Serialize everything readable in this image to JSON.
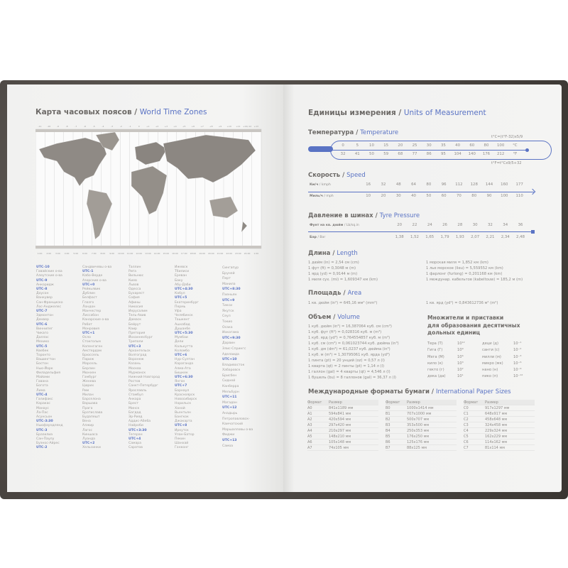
{
  "accent": "#5a73c4",
  "left": {
    "title_ru": "Карта часовых поясов",
    "title_sep": " / ",
    "title_en": "World Time Zones",
    "map": {
      "top_ticks": [
        "-11",
        "-10",
        "-9",
        "-8",
        "-7",
        "-6",
        "-5",
        "-4",
        "-3",
        "-2",
        "-1",
        "0",
        "+1",
        "+2",
        "+3",
        "+4",
        "+5",
        "+6",
        "+7",
        "+8",
        "+9",
        "+10",
        "+11",
        "+12/-12",
        "+13"
      ],
      "bottom_ticks": [
        "1:00",
        "2:00",
        "3:00",
        "4:00",
        "5:00",
        "6:00",
        "7:00",
        "8:00",
        "9:00",
        "10:00",
        "11:00",
        "12:00",
        "13:00",
        "14:00",
        "15:00",
        "16:00",
        "17:00",
        "18:00",
        "19:00",
        "20:00",
        "21:00",
        "22:00",
        "23:00",
        "24:00",
        "1:00"
      ]
    },
    "zones": [
      [
        "UTC-10",
        "Гавайские о-ва",
        "Алеутские о-ва",
        "UTC-9",
        "Анкоридж",
        "UTC-8",
        "Доусон",
        "Ванкувер",
        "Сан-Франциско",
        "Лос-Анджелес",
        "UTC-7",
        "Эдмонтон",
        "Денвер",
        "UTC-6",
        "Виннипег",
        "Чикаго",
        "Даллас",
        "Мехико",
        "UTC-5",
        "Квебек",
        "Торонто",
        "Вашингтон",
        "Бостон",
        "Нью-Йорк",
        "Филадельфия",
        "Майами",
        "Гавана",
        "Богота",
        "Лима",
        "UTC-4",
        "Галифакс",
        "Каракас",
        "Манаус",
        "Ла-Пас",
        "Асунсьон",
        "UTC-3:30",
        "Ньюфаундленд",
        "UTC-3",
        "Бразилиа",
        "Сан-Паулу",
        "Буэнос-Айрес",
        "UTC-2"
      ],
      [
        "Сандвичевы о-ва",
        "UTC-1",
        "Кабо-Верде",
        "Азорские о-ва",
        "UTC+0",
        "Рейкьявик",
        "Дублин",
        "Белфаст",
        "Глазго",
        "Лондон",
        "Манчестер",
        "Лиссабон",
        "Канарские о-ва",
        "Рабат",
        "Монровия",
        "UTC+1",
        "Осло",
        "Стокгольм",
        "Копенгаген",
        "Амстердам",
        "Брюссель",
        "Париж",
        "Марсель",
        "Берлин",
        "Мюнхен",
        "Гамбург",
        "Женева",
        "Цюрих",
        "Рим",
        "Милан",
        "Барселона",
        "Варшава",
        "Прага",
        "Братислава",
        "Будапешт",
        "Вена",
        "Алжир",
        "Лагос",
        "Киншаса",
        "Луанда",
        "UTC+2",
        "Хельсинки"
      ],
      [
        "Таллин",
        "Рига",
        "Вильнюс",
        "Киев",
        "Львов",
        "Одесса",
        "Бухарест",
        "София",
        "Афины",
        "Никосия",
        "Иерусалим",
        "Тель-Авив",
        "Дамаск",
        "Бейрут",
        "Каир",
        "Претория",
        "Йоханнесбург",
        "Триполи",
        "UTC+3",
        "Архангельск",
        "Волгоград",
        "Воронеж",
        "Казань",
        "Москва",
        "Мурманск",
        "Нижний Новгород",
        "Ростов",
        "Санкт-Петербург",
        "Ярославль",
        "Стамбул",
        "Анкара",
        "Брест",
        "Минск",
        "Багдад",
        "Эр-Рияд",
        "Аддис-Абеба",
        "Найроби",
        "UTC+3:30",
        "Тегеран",
        "UTC+4",
        "Самара",
        "Саратов"
      ],
      [
        "Ижевск",
        "Тбилиси",
        "Ереван",
        "Баку",
        "Абу-Даби",
        "UTC+4:30",
        "Кабул",
        "UTC+5",
        "Екатеринбург",
        "Пермь",
        "Уфа",
        "Челябинск",
        "Ташкент",
        "Ашхабад",
        "Душанбе",
        "UTC+5:30",
        "Мумбаи",
        "Дели",
        "Калькутта",
        "Коломбо",
        "UTC+6",
        "Нур-Султан",
        "Караганда",
        "Алма-Ата",
        "Бишкек",
        "UTC+6:30",
        "Янгон",
        "UTC+7",
        "Барнаул",
        "Красноярск",
        "Новосибирск",
        "Норильск",
        "Ханой",
        "Вьентьян",
        "Бангкок",
        "Джакарта",
        "UTC+8",
        "Иркутск",
        "Улан-Батор",
        "Пекин",
        "Шанхай",
        "Гонконг"
      ],
      [
        "Сингапур",
        "Бруней",
        "Перт",
        "Манила",
        "UTC+8:30",
        "Пхеньян",
        "UTC+9",
        "Тикси",
        "Якутск",
        "Сеул",
        "Токио",
        "Осака",
        "Иокогама",
        "UTC+9:30",
        "Дарвин",
        "Элис-Спрингс",
        "Аделаида",
        "UTC+10",
        "Владивосток",
        "Хабаровск",
        "Брисбен",
        "Сидней",
        "Канберра",
        "Мельбурн",
        "UTC+11",
        "Магадан",
        "UTC+12",
        "Анадырь",
        "Петропавловск-",
        "Камчатский",
        "Маршалловы о-ва",
        "Фиджи",
        "UTC+13",
        "Самоа"
      ]
    ]
  },
  "right": {
    "title_ru": "Единицы измерения",
    "title_en": "Units of Measurement",
    "sep": " / ",
    "temperature": {
      "ru": "Температура",
      "en": "Temperature",
      "formula_c": "t°C=(t°F-32)x5/9",
      "formula_f": "t°F=t°Cx9/5+32",
      "c": [
        "0",
        "5",
        "10",
        "15",
        "20",
        "25",
        "30",
        "35",
        "40",
        "60",
        "80",
        "100",
        "°C"
      ],
      "f": [
        "32",
        "41",
        "50",
        "59",
        "68",
        "77",
        "86",
        "95",
        "104",
        "140",
        "176",
        "212",
        "°F"
      ]
    },
    "speed": {
      "ru": "Скорость",
      "en": "Speed",
      "kmh_label": "Км/ч",
      "kmh_en": "kmph",
      "mph_label": "Миль/ч",
      "mph_en": "mph",
      "kmh": [
        "16",
        "32",
        "48",
        "64",
        "80",
        "96",
        "112",
        "128",
        "144",
        "160",
        "177"
      ],
      "mph": [
        "10",
        "20",
        "30",
        "40",
        "50",
        "60",
        "70",
        "80",
        "90",
        "100",
        "110"
      ]
    },
    "pressure": {
      "ru": "Давление в шинах",
      "en": "Tyre Pressure",
      "psi_label": "Фунт на кв. дюйм",
      "psi_en": "Lb/sq.in",
      "bar_label": "Бар",
      "bar_en": "Bar",
      "psi": [
        "20",
        "22",
        "24",
        "26",
        "28",
        "30",
        "32",
        "34",
        "36"
      ],
      "bar": [
        "1,38",
        "1,52",
        "1,65",
        "1,79",
        "1,93",
        "2,07",
        "2,21",
        "2,34",
        "2,48"
      ]
    },
    "length": {
      "ru": "Длина",
      "en": "Length",
      "left": [
        "1 дюйм (in) = 2,54 см (cm)",
        "1 фут (ft) = 0,3048 м (m)",
        "1 ярд (yd) = 0,9144 м (m)",
        "1 миля сух. (mi) = 1,609347 км (km)"
      ],
      "right": [
        "1 морская миля = 1,852 км (km)",
        "1 лье морское (lieu) = 5,559552 км (km)",
        "1 фарлонг (furlong) = 0,201168 км (km)",
        "1 междунар. кабельтов (kabeltouw) = 185,2 м (m)"
      ]
    },
    "area": {
      "ru": "Площадь",
      "en": "Area",
      "left": "1 кв. дюйм (in²) = 645,16 мм² (mm²)",
      "right": "1 кв. ярд (yd²) = 0,843612736 м² (m²)"
    },
    "volume": {
      "ru": "Объем",
      "en": "Volume",
      "lines": [
        "1 куб. дюйм (in³) = 16,387064 куб. см (cm³)",
        "1 куб. фут (ft³) = 0,028316 куб. м (m³)",
        "1 куб. ярд (yd³) = 0,764554857 куб. м (m³)",
        "1 куб. см (cm³) = 0,061023744 куб. дюйма (in³)",
        "1 куб. дм (dm³) = 61,0237 куб. дюйма (in³)",
        "1 куб. м (m³) = 1,30795061 куб. ярда (yd³)",
        "1 пинта (pt) = 20 унций (oz) = 0,57 л (l)",
        "1 кварта (qt) = 2 пинты (pt) = 1,14 л (l)",
        "1 галлон (gal) = 4 кварты (qt) = 4,546 л (l)",
        "1 бушель (bu) = 8 галлонов (gal) = 36,37 л (l)"
      ]
    },
    "prefixes": {
      "title": [
        "Множители и приставки",
        "для образования десятичных",
        "дольных единиц"
      ],
      "rows": [
        [
          "Тера (Т)",
          "10¹²",
          "деци (д)",
          "10⁻¹"
        ],
        [
          "Гига (Г)",
          "10⁹",
          "санти (с)",
          "10⁻²"
        ],
        [
          "Мега (М)",
          "10⁶",
          "милли (м)",
          "10⁻³"
        ],
        [
          "кило (к)",
          "10³",
          "микро (мк)",
          "10⁻⁶"
        ],
        [
          "гекто (г)",
          "10²",
          "нано (н)",
          "10⁻⁹"
        ],
        [
          "дека (да)",
          "10¹",
          "пико (п)",
          "10⁻¹²"
        ]
      ]
    },
    "paper": {
      "ru": "Международные форматы бумаги",
      "en": "International Paper Sizes",
      "col_format": "Формат",
      "col_size": "Размер",
      "groups": [
        [
          [
            "A0",
            "841x1189 мм"
          ],
          [
            "A1",
            "594x841 мм"
          ],
          [
            "A2",
            "420x594 мм"
          ],
          [
            "A3",
            "297x420 мм"
          ],
          [
            "A4",
            "210x297 мм"
          ],
          [
            "A5",
            "148x210 мм"
          ],
          [
            "A6",
            "105x148 мм"
          ],
          [
            "A7",
            "74x105 мм"
          ]
        ],
        [
          [
            "B0",
            "1000x1414 мм"
          ],
          [
            "B1",
            "707x1000 мм"
          ],
          [
            "B2",
            "500x707 мм"
          ],
          [
            "B3",
            "353x500 мм"
          ],
          [
            "B4",
            "250x353 мм"
          ],
          [
            "B5",
            "176x250 мм"
          ],
          [
            "B6",
            "125x176 мм"
          ],
          [
            "B7",
            "88x125 мм"
          ]
        ],
        [
          [
            "C0",
            "917x1297 мм"
          ],
          [
            "C1",
            "648x917 мм"
          ],
          [
            "C2",
            "458x648 мм"
          ],
          [
            "C3",
            "324x458 мм"
          ],
          [
            "C4",
            "229x324 мм"
          ],
          [
            "C5",
            "162x229 мм"
          ],
          [
            "C6",
            "114x162 мм"
          ],
          [
            "C7",
            "81x114 мм"
          ]
        ]
      ]
    }
  }
}
